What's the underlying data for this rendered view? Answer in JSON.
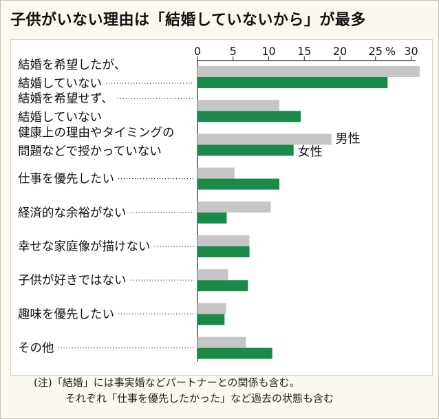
{
  "title": "子供がいない理由は「結婚していないから」が最多",
  "note": {
    "line1": "(注)「結婚」には事実婚などパートナーとの関係も含む。",
    "line2": "それぞれ「仕事を優先したかった」など過去の状態も含む"
  },
  "colors": {
    "male": "#c6c6c6",
    "female": "#1a8a4b"
  },
  "chart_data": {
    "type": "bar",
    "orientation": "horizontal",
    "unit": "%",
    "xlim": [
      0,
      30
    ],
    "ticks": [
      "0",
      "5",
      "10",
      "15",
      "20",
      "25",
      "30"
    ],
    "tick_values": [
      0,
      5,
      10,
      15,
      20,
      25,
      30
    ],
    "categories": [
      [
        "結婚を希望したが、",
        "結婚していない"
      ],
      [
        "結婚を希望せず、",
        "結婚していない"
      ],
      [
        "健康上の理由やタイミングの",
        "問題などで授かっていない"
      ],
      [
        "仕事を優先したい"
      ],
      [
        "経済的な余裕がない"
      ],
      [
        "幸せな家庭像が描けない"
      ],
      [
        "子供が好きではない"
      ],
      [
        "趣味を優先したい"
      ],
      [
        "その他"
      ]
    ],
    "series": [
      {
        "name": "男性",
        "values": [
          31.2,
          11.5,
          18.8,
          5.2,
          10.3,
          7.3,
          4.3,
          4.0,
          6.8
        ]
      },
      {
        "name": "女性",
        "values": [
          26.7,
          14.5,
          13.5,
          11.5,
          4.1,
          7.3,
          7.1,
          3.8,
          10.5
        ]
      }
    ]
  }
}
